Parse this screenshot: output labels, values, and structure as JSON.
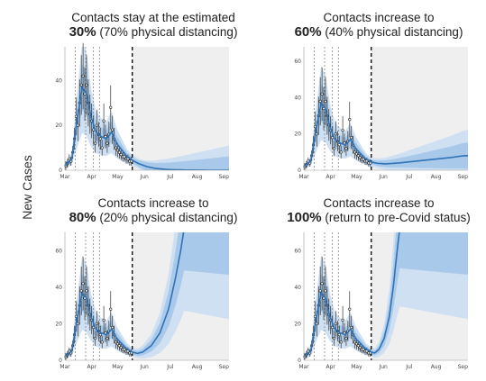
{
  "ylabel": "New Cases",
  "chart_data": [
    {
      "type": "line",
      "title_line1": "Contacts stay at the estimated",
      "title_bold": "30%",
      "title_line2": "(70% physical distancing)",
      "ylim": [
        0,
        55
      ],
      "yticks": [
        0,
        20,
        40
      ],
      "xticks": [
        "Mar",
        "Apr",
        "May",
        "Jun",
        "Jul",
        "Aug",
        "Sep"
      ],
      "forecast_start_day": 78,
      "observed": [
        [
          1,
          2
        ],
        [
          3,
          3
        ],
        [
          5,
          5
        ],
        [
          7,
          4
        ],
        [
          9,
          8
        ],
        [
          11,
          14
        ],
        [
          13,
          24
        ],
        [
          15,
          20
        ],
        [
          17,
          30
        ],
        [
          19,
          38
        ],
        [
          21,
          42
        ],
        [
          23,
          34
        ],
        [
          25,
          38
        ],
        [
          27,
          30
        ],
        [
          29,
          25
        ],
        [
          31,
          22
        ],
        [
          33,
          18
        ],
        [
          35,
          12
        ],
        [
          37,
          20
        ],
        [
          39,
          16
        ],
        [
          41,
          14
        ],
        [
          43,
          10
        ],
        [
          45,
          22
        ],
        [
          47,
          15
        ],
        [
          49,
          12
        ],
        [
          51,
          16
        ],
        [
          53,
          28
        ],
        [
          55,
          18
        ],
        [
          57,
          14
        ],
        [
          59,
          10
        ],
        [
          61,
          9
        ],
        [
          63,
          8
        ],
        [
          65,
          7
        ],
        [
          67,
          6
        ],
        [
          69,
          6
        ],
        [
          71,
          5
        ],
        [
          73,
          5
        ],
        [
          75,
          4
        ],
        [
          77,
          4
        ]
      ],
      "fit": [
        [
          0,
          2
        ],
        [
          8,
          5
        ],
        [
          14,
          22
        ],
        [
          20,
          37
        ],
        [
          25,
          34
        ],
        [
          30,
          24
        ],
        [
          36,
          17
        ],
        [
          42,
          15
        ],
        [
          48,
          14
        ],
        [
          54,
          17
        ],
        [
          60,
          12
        ],
        [
          66,
          9
        ],
        [
          72,
          6
        ],
        [
          78,
          4.5
        ],
        [
          85,
          3
        ],
        [
          95,
          1.6
        ],
        [
          105,
          0.8
        ],
        [
          120,
          0.3
        ],
        [
          140,
          0.1
        ],
        [
          170,
          0
        ]
      ]
    },
    {
      "type": "line",
      "title_line1": "Contacts increase to",
      "title_bold": "60%",
      "title_line2": "(40% physical distancing)",
      "ylim": [
        0,
        68
      ],
      "yticks": [
        0,
        20,
        40,
        60
      ],
      "xticks": [
        "Mar",
        "Apr",
        "May",
        "Jun",
        "Jul",
        "Aug",
        "Sep"
      ],
      "forecast_start_day": 78,
      "observed": [
        [
          1,
          2
        ],
        [
          3,
          3
        ],
        [
          5,
          5
        ],
        [
          7,
          4
        ],
        [
          9,
          8
        ],
        [
          11,
          14
        ],
        [
          13,
          24
        ],
        [
          15,
          20
        ],
        [
          17,
          30
        ],
        [
          19,
          38
        ],
        [
          21,
          42
        ],
        [
          23,
          34
        ],
        [
          25,
          38
        ],
        [
          27,
          30
        ],
        [
          29,
          25
        ],
        [
          31,
          22
        ],
        [
          33,
          18
        ],
        [
          35,
          12
        ],
        [
          37,
          20
        ],
        [
          39,
          16
        ],
        [
          41,
          14
        ],
        [
          43,
          10
        ],
        [
          45,
          22
        ],
        [
          47,
          15
        ],
        [
          49,
          12
        ],
        [
          51,
          16
        ],
        [
          53,
          28
        ],
        [
          55,
          18
        ],
        [
          57,
          14
        ],
        [
          59,
          10
        ],
        [
          61,
          9
        ],
        [
          63,
          8
        ],
        [
          65,
          7
        ],
        [
          67,
          6
        ],
        [
          69,
          6
        ],
        [
          71,
          5
        ],
        [
          73,
          5
        ],
        [
          75,
          4
        ],
        [
          77,
          4
        ]
      ],
      "fit": [
        [
          0,
          2
        ],
        [
          8,
          5
        ],
        [
          14,
          22
        ],
        [
          20,
          37
        ],
        [
          25,
          34
        ],
        [
          30,
          24
        ],
        [
          36,
          17
        ],
        [
          42,
          15
        ],
        [
          48,
          14
        ],
        [
          54,
          17
        ],
        [
          60,
          12
        ],
        [
          66,
          9
        ],
        [
          72,
          6
        ],
        [
          78,
          4.5
        ],
        [
          85,
          3.8
        ],
        [
          95,
          3.5
        ],
        [
          110,
          4
        ],
        [
          130,
          5
        ],
        [
          150,
          6
        ],
        [
          170,
          7
        ],
        [
          185,
          8
        ]
      ]
    },
    {
      "type": "line",
      "title_line1": "Contacts increase to",
      "title_bold": "80%",
      "title_line2": "(20% physical distancing)",
      "ylim": [
        0,
        70
      ],
      "yticks": [
        0,
        20,
        40,
        60
      ],
      "xticks": [
        "Mar",
        "Apr",
        "May",
        "Jun",
        "Jul",
        "Aug",
        "Sep"
      ],
      "forecast_start_day": 78,
      "observed": [
        [
          1,
          2
        ],
        [
          3,
          3
        ],
        [
          5,
          5
        ],
        [
          7,
          4
        ],
        [
          9,
          8
        ],
        [
          11,
          14
        ],
        [
          13,
          24
        ],
        [
          15,
          20
        ],
        [
          17,
          30
        ],
        [
          19,
          38
        ],
        [
          21,
          42
        ],
        [
          23,
          34
        ],
        [
          25,
          38
        ],
        [
          27,
          30
        ],
        [
          29,
          25
        ],
        [
          31,
          22
        ],
        [
          33,
          18
        ],
        [
          35,
          12
        ],
        [
          37,
          20
        ],
        [
          39,
          16
        ],
        [
          41,
          14
        ],
        [
          43,
          10
        ],
        [
          45,
          22
        ],
        [
          47,
          15
        ],
        [
          49,
          12
        ],
        [
          51,
          16
        ],
        [
          53,
          28
        ],
        [
          55,
          18
        ],
        [
          57,
          14
        ],
        [
          59,
          10
        ],
        [
          61,
          9
        ],
        [
          63,
          8
        ],
        [
          65,
          7
        ],
        [
          67,
          6
        ],
        [
          69,
          6
        ],
        [
          71,
          5
        ],
        [
          73,
          5
        ],
        [
          75,
          4
        ],
        [
          77,
          4
        ]
      ],
      "fit": [
        [
          0,
          2
        ],
        [
          8,
          5
        ],
        [
          14,
          22
        ],
        [
          20,
          37
        ],
        [
          25,
          34
        ],
        [
          30,
          24
        ],
        [
          36,
          17
        ],
        [
          42,
          15
        ],
        [
          48,
          14
        ],
        [
          54,
          17
        ],
        [
          60,
          12
        ],
        [
          66,
          9
        ],
        [
          72,
          6
        ],
        [
          78,
          4.5
        ],
        [
          84,
          3.8
        ],
        [
          90,
          4.5
        ],
        [
          100,
          8
        ],
        [
          110,
          15
        ],
        [
          120,
          28
        ],
        [
          128,
          45
        ],
        [
          134,
          60
        ],
        [
          138,
          72
        ]
      ]
    },
    {
      "type": "line",
      "title_line1": "Contacts increase to",
      "title_bold": "100%",
      "title_line2": "(return to pre-Covid status)",
      "ylim": [
        0,
        70
      ],
      "yticks": [
        0,
        20,
        40,
        60
      ],
      "xticks": [
        "Mar",
        "Apr",
        "May",
        "Jun",
        "Jul",
        "Aug",
        "Sep"
      ],
      "forecast_start_day": 78,
      "observed": [
        [
          1,
          2
        ],
        [
          3,
          3
        ],
        [
          5,
          5
        ],
        [
          7,
          4
        ],
        [
          9,
          8
        ],
        [
          11,
          14
        ],
        [
          13,
          24
        ],
        [
          15,
          20
        ],
        [
          17,
          30
        ],
        [
          19,
          38
        ],
        [
          21,
          42
        ],
        [
          23,
          34
        ],
        [
          25,
          38
        ],
        [
          27,
          30
        ],
        [
          29,
          25
        ],
        [
          31,
          22
        ],
        [
          33,
          18
        ],
        [
          35,
          12
        ],
        [
          37,
          20
        ],
        [
          39,
          16
        ],
        [
          41,
          14
        ],
        [
          43,
          10
        ],
        [
          45,
          22
        ],
        [
          47,
          15
        ],
        [
          49,
          12
        ],
        [
          51,
          16
        ],
        [
          53,
          28
        ],
        [
          55,
          18
        ],
        [
          57,
          14
        ],
        [
          59,
          10
        ],
        [
          61,
          9
        ],
        [
          63,
          8
        ],
        [
          65,
          7
        ],
        [
          67,
          6
        ],
        [
          69,
          6
        ],
        [
          71,
          5
        ],
        [
          73,
          5
        ],
        [
          75,
          4
        ],
        [
          77,
          4
        ]
      ],
      "fit": [
        [
          0,
          2
        ],
        [
          8,
          5
        ],
        [
          14,
          22
        ],
        [
          20,
          37
        ],
        [
          25,
          34
        ],
        [
          30,
          24
        ],
        [
          36,
          17
        ],
        [
          42,
          15
        ],
        [
          48,
          14
        ],
        [
          54,
          17
        ],
        [
          60,
          12
        ],
        [
          66,
          9
        ],
        [
          72,
          6
        ],
        [
          78,
          4.5
        ],
        [
          82,
          4
        ],
        [
          87,
          6
        ],
        [
          93,
          12
        ],
        [
          99,
          24
        ],
        [
          104,
          42
        ],
        [
          108,
          60
        ],
        [
          111,
          72
        ]
      ]
    }
  ]
}
